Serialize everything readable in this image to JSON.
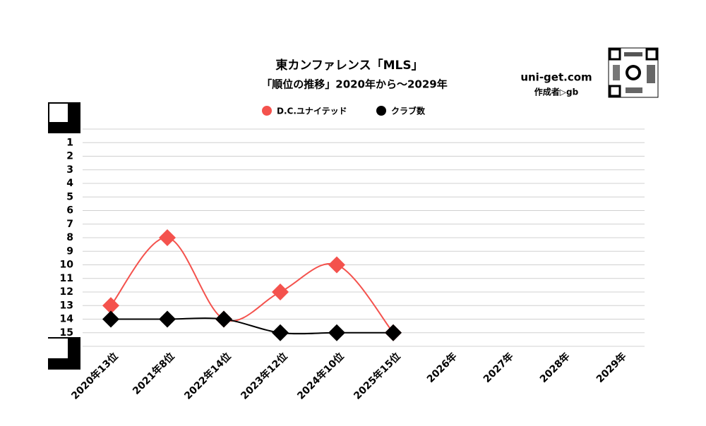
{
  "chart_data": {
    "type": "line",
    "title": "東カンファレンス「MLS」",
    "subtitle": "「順位の推移」2020年から～2029年",
    "site": "uni-get.com",
    "author": "作成者▷gb",
    "categories": [
      "2020年13位",
      "2021年8位",
      "2022年14位",
      "2023年12位",
      "2024年10位",
      "2025年15位",
      "2026年",
      "2027年",
      "2028年",
      "2029年"
    ],
    "series": [
      {
        "name": "D.C.ユナイテッド",
        "color": "#f4524d",
        "values": [
          13,
          8,
          14,
          12,
          10,
          15,
          null,
          null,
          null,
          null
        ]
      },
      {
        "name": "クラブ数",
        "color": "#000000",
        "values": [
          14,
          14,
          14,
          15,
          15,
          15,
          null,
          null,
          null,
          null
        ]
      }
    ],
    "ylim": [
      0,
      16
    ],
    "y_inverted": true,
    "yticks": [
      1,
      2,
      3,
      4,
      5,
      6,
      7,
      8,
      9,
      10,
      11,
      12,
      13,
      14,
      15
    ],
    "grid": true,
    "smooth": true,
    "legend": "top"
  }
}
